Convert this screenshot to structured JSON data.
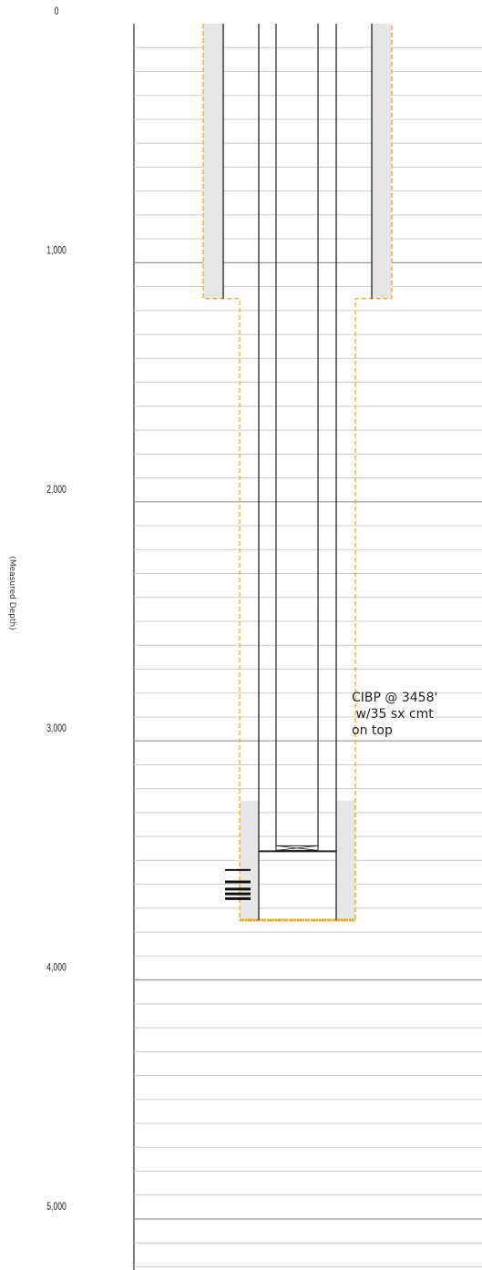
{
  "depth_axis": {
    "label": "(Measured Depth)",
    "ticks": [
      {
        "value": 0,
        "label": "0"
      },
      {
        "value": 1000,
        "label": "1,000"
      },
      {
        "value": 2000,
        "label": "2,000"
      },
      {
        "value": 3000,
        "label": "3,000"
      },
      {
        "value": 4000,
        "label": "4,000"
      },
      {
        "value": 5000,
        "label": "5,000"
      }
    ],
    "range_ft": [
      0,
      5250
    ],
    "minor_interval_ft": 100,
    "major_interval_ft": 1000
  },
  "wellbore": {
    "surface_casing": {
      "top_ft": 0,
      "bottom_ft": 1150
    },
    "production_casing": {
      "top_ft": 0,
      "bottom_ft": 3750
    },
    "cement_sheath": {
      "top_ft": 3250,
      "bottom_ft": 3750
    },
    "tubing": {
      "top_ft": 0,
      "bottom_ft": 3458
    },
    "perforations_ft": [
      3540,
      3590,
      3620,
      3640,
      3660
    ],
    "plug": {
      "depth_ft": 3458,
      "type": "CIBP"
    },
    "colors": {
      "casing_line": "#222222",
      "cement_fill": "#e6e6e6",
      "hole_outline": "#f0a30a",
      "grid_minor": "#cccccc",
      "grid_major": "#999999"
    }
  },
  "annotation": {
    "lines": [
      "CIBP @ 3458'",
      " w/35 sx cmt",
      "on top"
    ]
  }
}
